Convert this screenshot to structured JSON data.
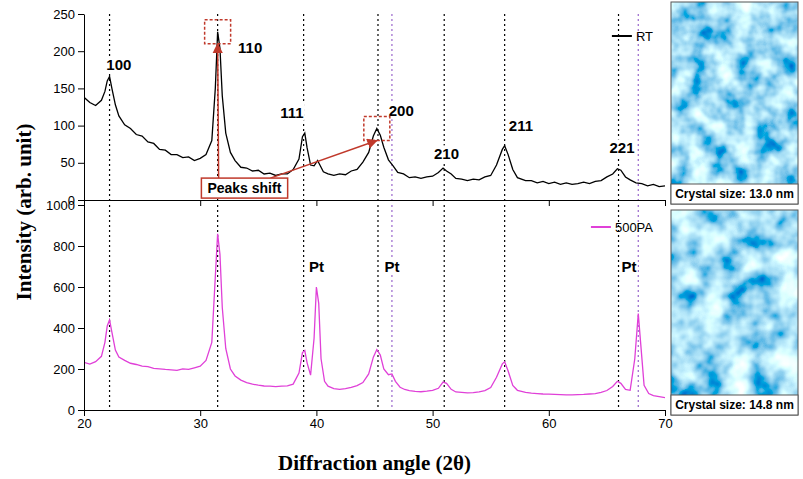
{
  "chart_data": [
    {
      "type": "line",
      "ylabel": "Intensity (arb. unit)",
      "x": [
        20.0,
        20.5,
        21.0,
        21.5,
        21.8,
        22.0,
        22.2,
        22.4,
        22.7,
        23.0,
        23.5,
        24.0,
        24.5,
        25.0,
        25.5,
        26.0,
        26.5,
        27.0,
        27.5,
        28.0,
        28.5,
        29.0,
        29.5,
        30.0,
        30.5,
        31.0,
        31.3,
        31.5,
        31.7,
        31.9,
        32.2,
        32.6,
        33.0,
        33.5,
        34.0,
        34.5,
        35.0,
        35.5,
        36.0,
        36.5,
        37.0,
        37.5,
        38.0,
        38.5,
        38.8,
        39.0,
        39.2,
        39.5,
        39.8,
        40.1,
        40.3,
        40.6,
        41.0,
        41.5,
        42.0,
        42.5,
        43.0,
        43.5,
        44.0,
        44.5,
        44.9,
        45.2,
        45.5,
        45.8,
        46.2,
        46.6,
        47.0,
        47.5,
        48.0,
        48.5,
        49.0,
        49.5,
        50.0,
        50.5,
        50.9,
        51.2,
        51.6,
        52.0,
        52.5,
        53.0,
        53.5,
        54.0,
        54.5,
        55.0,
        55.5,
        56.0,
        56.2,
        56.5,
        56.9,
        57.3,
        58.0,
        58.5,
        59.0,
        59.5,
        60.0,
        60.5,
        61.0,
        61.5,
        62.0,
        62.5,
        63.0,
        63.5,
        64.0,
        64.5,
        65.0,
        65.5,
        65.9,
        66.2,
        66.6,
        67.0,
        67.5,
        68.0,
        68.5,
        69.0,
        69.5,
        70.0
      ],
      "series": [
        {
          "name": "RT",
          "color": "#000000",
          "values": [
            138,
            131,
            127,
            134,
            146,
            160,
            166,
            150,
            128,
            113,
            101,
            96,
            88,
            86,
            78,
            76,
            68,
            67,
            61,
            61,
            57,
            58,
            53,
            56,
            61,
            80,
            150,
            226,
            204,
            140,
            90,
            64,
            53,
            44,
            43,
            39,
            40,
            35,
            36,
            33,
            35,
            35,
            41,
            55,
            85,
            90,
            70,
            47,
            46,
            53,
            47,
            38,
            35,
            33,
            35,
            34,
            39,
            41,
            51,
            64,
            86,
            96,
            87,
            71,
            54,
            46,
            37,
            35,
            30,
            31,
            29,
            31,
            32,
            37,
            43,
            39,
            35,
            29,
            28,
            26,
            28,
            27,
            31,
            33,
            47,
            68,
            73,
            61,
            41,
            30,
            26,
            26,
            23,
            25,
            22,
            24,
            21,
            23,
            21,
            22,
            24,
            22,
            25,
            26,
            31,
            35,
            42,
            40,
            31,
            27,
            23,
            22,
            19,
            21,
            18,
            19
          ]
        }
      ],
      "xlim": [
        20,
        70
      ],
      "xticks": [
        20,
        30,
        40,
        50,
        60,
        70
      ],
      "ylim": [
        0,
        250
      ],
      "yticks": [
        0,
        50,
        100,
        150,
        200,
        250
      ],
      "tick_labels": "y",
      "legend": "upper right",
      "reference_lines": [
        {
          "x": [
            22.2,
            31.5,
            38.9,
            45.3,
            51.0,
            56.2,
            66.0
          ],
          "color": "#000000",
          "line_style": "dotted"
        },
        {
          "x": [
            46.5,
            67.7
          ],
          "color": "#9966cc",
          "line_style": "dotted"
        }
      ],
      "annotations": [
        {
          "text": "100",
          "x": 23.0,
          "y": 182
        },
        {
          "text": "110",
          "x": 34.3,
          "y": 205
        },
        {
          "text": "111",
          "x": 37.9,
          "y": 118
        },
        {
          "text": "200",
          "x": 47.3,
          "y": 120
        },
        {
          "text": "210",
          "x": 51.2,
          "y": 62
        },
        {
          "text": "211",
          "x": 57.6,
          "y": 100
        },
        {
          "text": "221",
          "x": 66.3,
          "y": 70
        }
      ],
      "callout": {
        "text": "Peaks shift",
        "x": 33.8,
        "y": 16,
        "targets": [
          {
            "x": 31.5,
            "y": 226
          },
          {
            "x": 45.2,
            "y": 96
          }
        ]
      },
      "inset": {
        "caption": "Crystal size: 13.0 nm"
      }
    },
    {
      "type": "line",
      "xlabel": "Diffraction angle (2θ)",
      "x": [
        20.0,
        20.5,
        21.0,
        21.5,
        21.8,
        22.0,
        22.2,
        22.4,
        22.7,
        23.0,
        23.5,
        24.0,
        24.5,
        25.0,
        25.5,
        26.0,
        26.5,
        27.0,
        27.5,
        28.0,
        28.5,
        29.0,
        29.5,
        30.0,
        30.5,
        31.0,
        31.3,
        31.5,
        31.7,
        31.9,
        32.2,
        32.6,
        33.0,
        33.5,
        34.0,
        34.5,
        35.0,
        35.5,
        36.0,
        36.5,
        37.0,
        37.5,
        38.0,
        38.5,
        38.8,
        39.0,
        39.2,
        39.5,
        39.8,
        40.0,
        40.2,
        40.4,
        40.7,
        41.0,
        41.5,
        42.0,
        42.5,
        43.0,
        43.5,
        44.0,
        44.5,
        44.9,
        45.2,
        45.5,
        45.8,
        46.2,
        46.5,
        46.8,
        47.2,
        47.6,
        48.0,
        48.5,
        49.0,
        49.5,
        50.0,
        50.5,
        50.9,
        51.2,
        51.6,
        52.0,
        52.5,
        53.0,
        53.5,
        54.0,
        54.5,
        55.0,
        55.5,
        56.0,
        56.2,
        56.5,
        56.9,
        57.3,
        58.0,
        58.5,
        59.0,
        59.5,
        60.0,
        60.5,
        61.0,
        61.5,
        62.0,
        62.5,
        63.0,
        63.5,
        64.0,
        64.5,
        65.0,
        65.5,
        65.9,
        66.2,
        66.6,
        67.0,
        67.4,
        67.7,
        67.9,
        68.2,
        68.6,
        69.0,
        69.5,
        70.0
      ],
      "series": [
        {
          "name": "500PA",
          "color": "#e040d8",
          "values": [
            232,
            224,
            236,
            262,
            330,
            410,
            440,
            380,
            292,
            258,
            242,
            228,
            222,
            214,
            212,
            203,
            201,
            198,
            196,
            193,
            201,
            198,
            206,
            214,
            242,
            330,
            650,
            860,
            760,
            500,
            300,
            200,
            166,
            146,
            134,
            126,
            121,
            117,
            116,
            114,
            116,
            118,
            126,
            180,
            280,
            290,
            230,
            170,
            350,
            600,
            520,
            250,
            140,
            116,
            104,
            101,
            104,
            110,
            119,
            134,
            176,
            258,
            295,
            268,
            200,
            172,
            176,
            140,
            111,
            100,
            95,
            91,
            89,
            92,
            96,
            106,
            136,
            130,
            101,
            88,
            86,
            84,
            85,
            88,
            95,
            110,
            160,
            225,
            235,
            190,
            120,
            96,
            86,
            82,
            80,
            78,
            77,
            76,
            75,
            74,
            74,
            75,
            76,
            78,
            80,
            86,
            95,
            115,
            140,
            130,
            100,
            96,
            250,
            470,
            330,
            120,
            80,
            70,
            65,
            60
          ]
        }
      ],
      "xlim": [
        20,
        70
      ],
      "xticks": [
        20,
        30,
        40,
        50,
        60,
        70
      ],
      "ylim": [
        0,
        1000
      ],
      "yticks": [
        0,
        200,
        400,
        600,
        800,
        1000
      ],
      "tick_labels": true,
      "legend": "upper right",
      "reference_lines": [
        {
          "x": [
            22.2,
            31.5,
            38.9,
            45.3,
            51.0,
            56.2,
            66.0
          ],
          "color": "#000000",
          "line_style": "dotted"
        },
        {
          "x": [
            46.5,
            67.7
          ],
          "color": "#9966cc",
          "line_style": "dotted"
        }
      ],
      "annotations": [
        {
          "text": "Pt",
          "x": 40.0,
          "y": 700
        },
        {
          "text": "Pt",
          "x": 46.5,
          "y": 700
        },
        {
          "text": "Pt",
          "x": 66.9,
          "y": 700
        }
      ],
      "inset": {
        "caption": "Crystal size: 14.8 nm"
      }
    }
  ]
}
